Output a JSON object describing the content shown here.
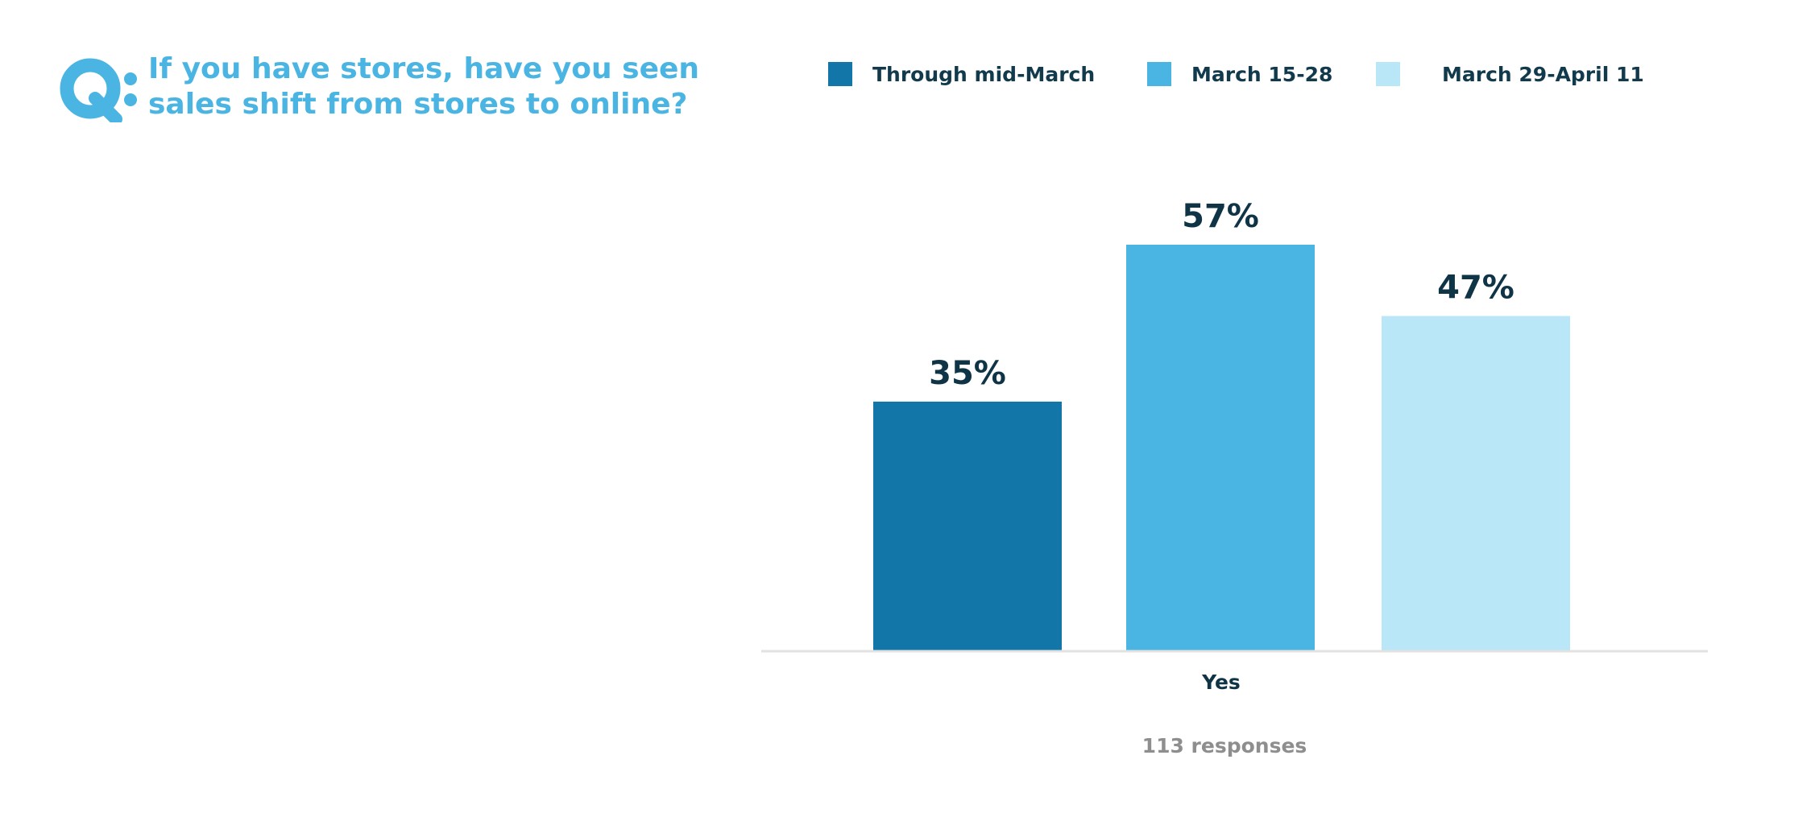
{
  "question": {
    "prefix": "Q:",
    "line1": "If you have stores, have you seen",
    "line2": "sales shift from stores to online?"
  },
  "legend": [
    {
      "label": "Through mid-March",
      "color": "#1276a8"
    },
    {
      "label": "March 15-28",
      "color": "#4ab5e3"
    },
    {
      "label": "March 29-April 11",
      "color": "#bae7f7"
    }
  ],
  "note": "113 responses",
  "chart_data": {
    "type": "bar",
    "categories": [
      "Yes"
    ],
    "series": [
      {
        "name": "Through mid-March",
        "values": [
          35
        ],
        "label": "35%",
        "color": "#1276a8"
      },
      {
        "name": "March 15-28",
        "values": [
          57
        ],
        "label": "57%",
        "color": "#4ab5e3"
      },
      {
        "name": "March 29-April 11",
        "values": [
          47
        ],
        "label": "47%",
        "color": "#bae7f7"
      }
    ],
    "ylim": [
      0,
      57
    ],
    "title": "",
    "xlabel": "",
    "ylabel": "",
    "legend_position": "top",
    "grid": false
  }
}
